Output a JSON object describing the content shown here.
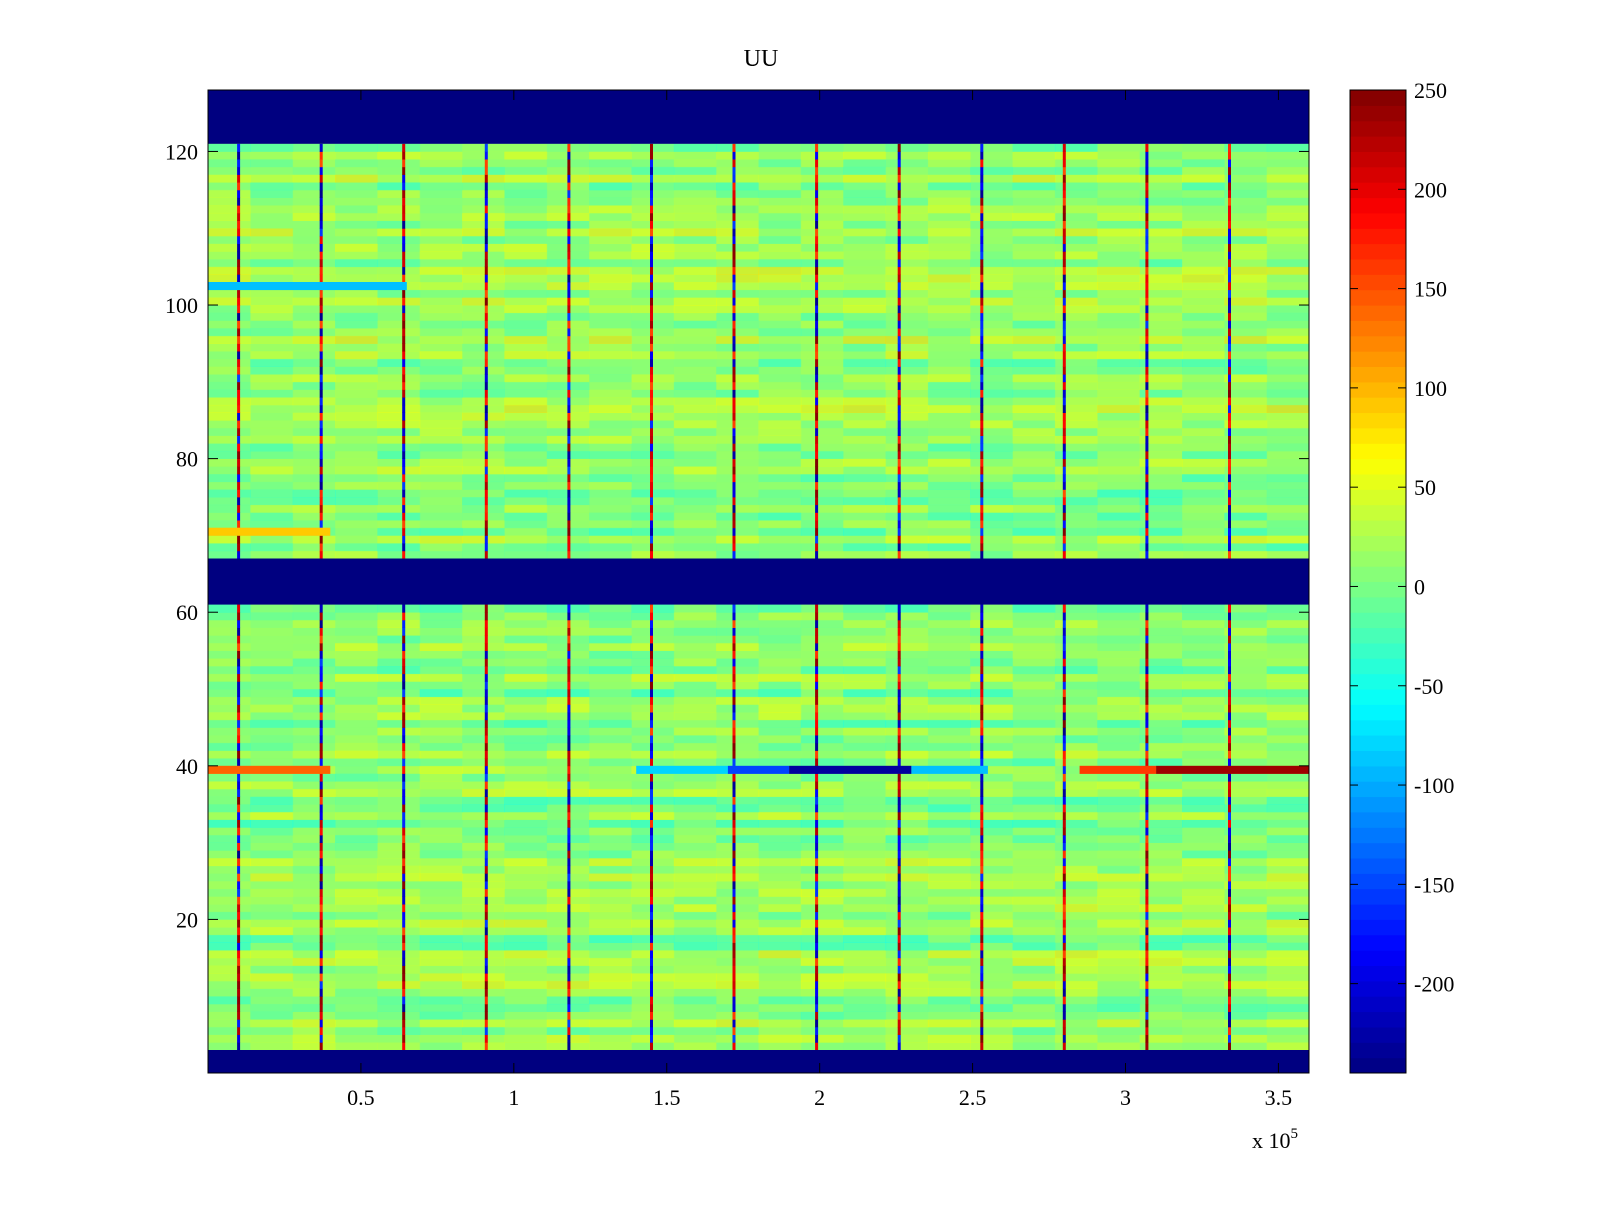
{
  "chart_data": {
    "type": "heatmap",
    "title": "UU",
    "xlabel": "",
    "ylabel": "",
    "x_multiplier_label": "x 10",
    "x_multiplier_exponent": "5",
    "xlim": [
      0,
      3.6
    ],
    "ylim": [
      0,
      128
    ],
    "x_ticks": [
      0.5,
      1,
      1.5,
      2,
      2.5,
      3,
      3.5
    ],
    "x_tick_labels": [
      "0.5",
      "1",
      "1.5",
      "2",
      "2.5",
      "3",
      "3.5"
    ],
    "y_ticks": [
      20,
      40,
      60,
      80,
      100,
      120
    ],
    "y_tick_labels": [
      "20",
      "40",
      "60",
      "80",
      "100",
      "120"
    ],
    "colormap": "jet",
    "clim": [
      -245,
      250
    ],
    "colorbar_ticks": [
      250,
      200,
      150,
      100,
      50,
      0,
      -50,
      -100,
      -150,
      -200
    ],
    "colorbar_tick_labels": [
      "250",
      "200",
      "150",
      "100",
      "50",
      "0",
      "-50",
      "-100",
      "-150",
      "-200"
    ],
    "background_value": 10,
    "masked_row_bands": [
      [
        0,
        3
      ],
      [
        61,
        67
      ],
      [
        121,
        128
      ]
    ],
    "mask_value": -245,
    "vertical_spike_x": [
      0.1,
      0.37,
      0.64,
      0.91,
      1.18,
      1.45,
      1.72,
      1.99,
      2.26,
      2.53,
      2.8,
      3.07,
      3.34
    ],
    "horizontal_features": [
      {
        "row": 39,
        "x_start": 0,
        "x_end": 0.4,
        "value": 140
      },
      {
        "row": 39,
        "x_start": 1.4,
        "x_end": 1.7,
        "value": -80
      },
      {
        "row": 39,
        "x_start": 1.7,
        "x_end": 1.9,
        "value": -150
      },
      {
        "row": 39,
        "x_start": 1.9,
        "x_end": 2.3,
        "value": -230
      },
      {
        "row": 39,
        "x_start": 2.3,
        "x_end": 2.55,
        "value": -90
      },
      {
        "row": 39,
        "x_start": 2.85,
        "x_end": 3.1,
        "value": 160
      },
      {
        "row": 39,
        "x_start": 3.1,
        "x_end": 3.6,
        "value": 235
      },
      {
        "row": 102,
        "x_start": 0,
        "x_end": 0.65,
        "value": -90
      },
      {
        "row": 70,
        "x_start": 0,
        "x_end": 0.4,
        "value": 90
      }
    ]
  }
}
